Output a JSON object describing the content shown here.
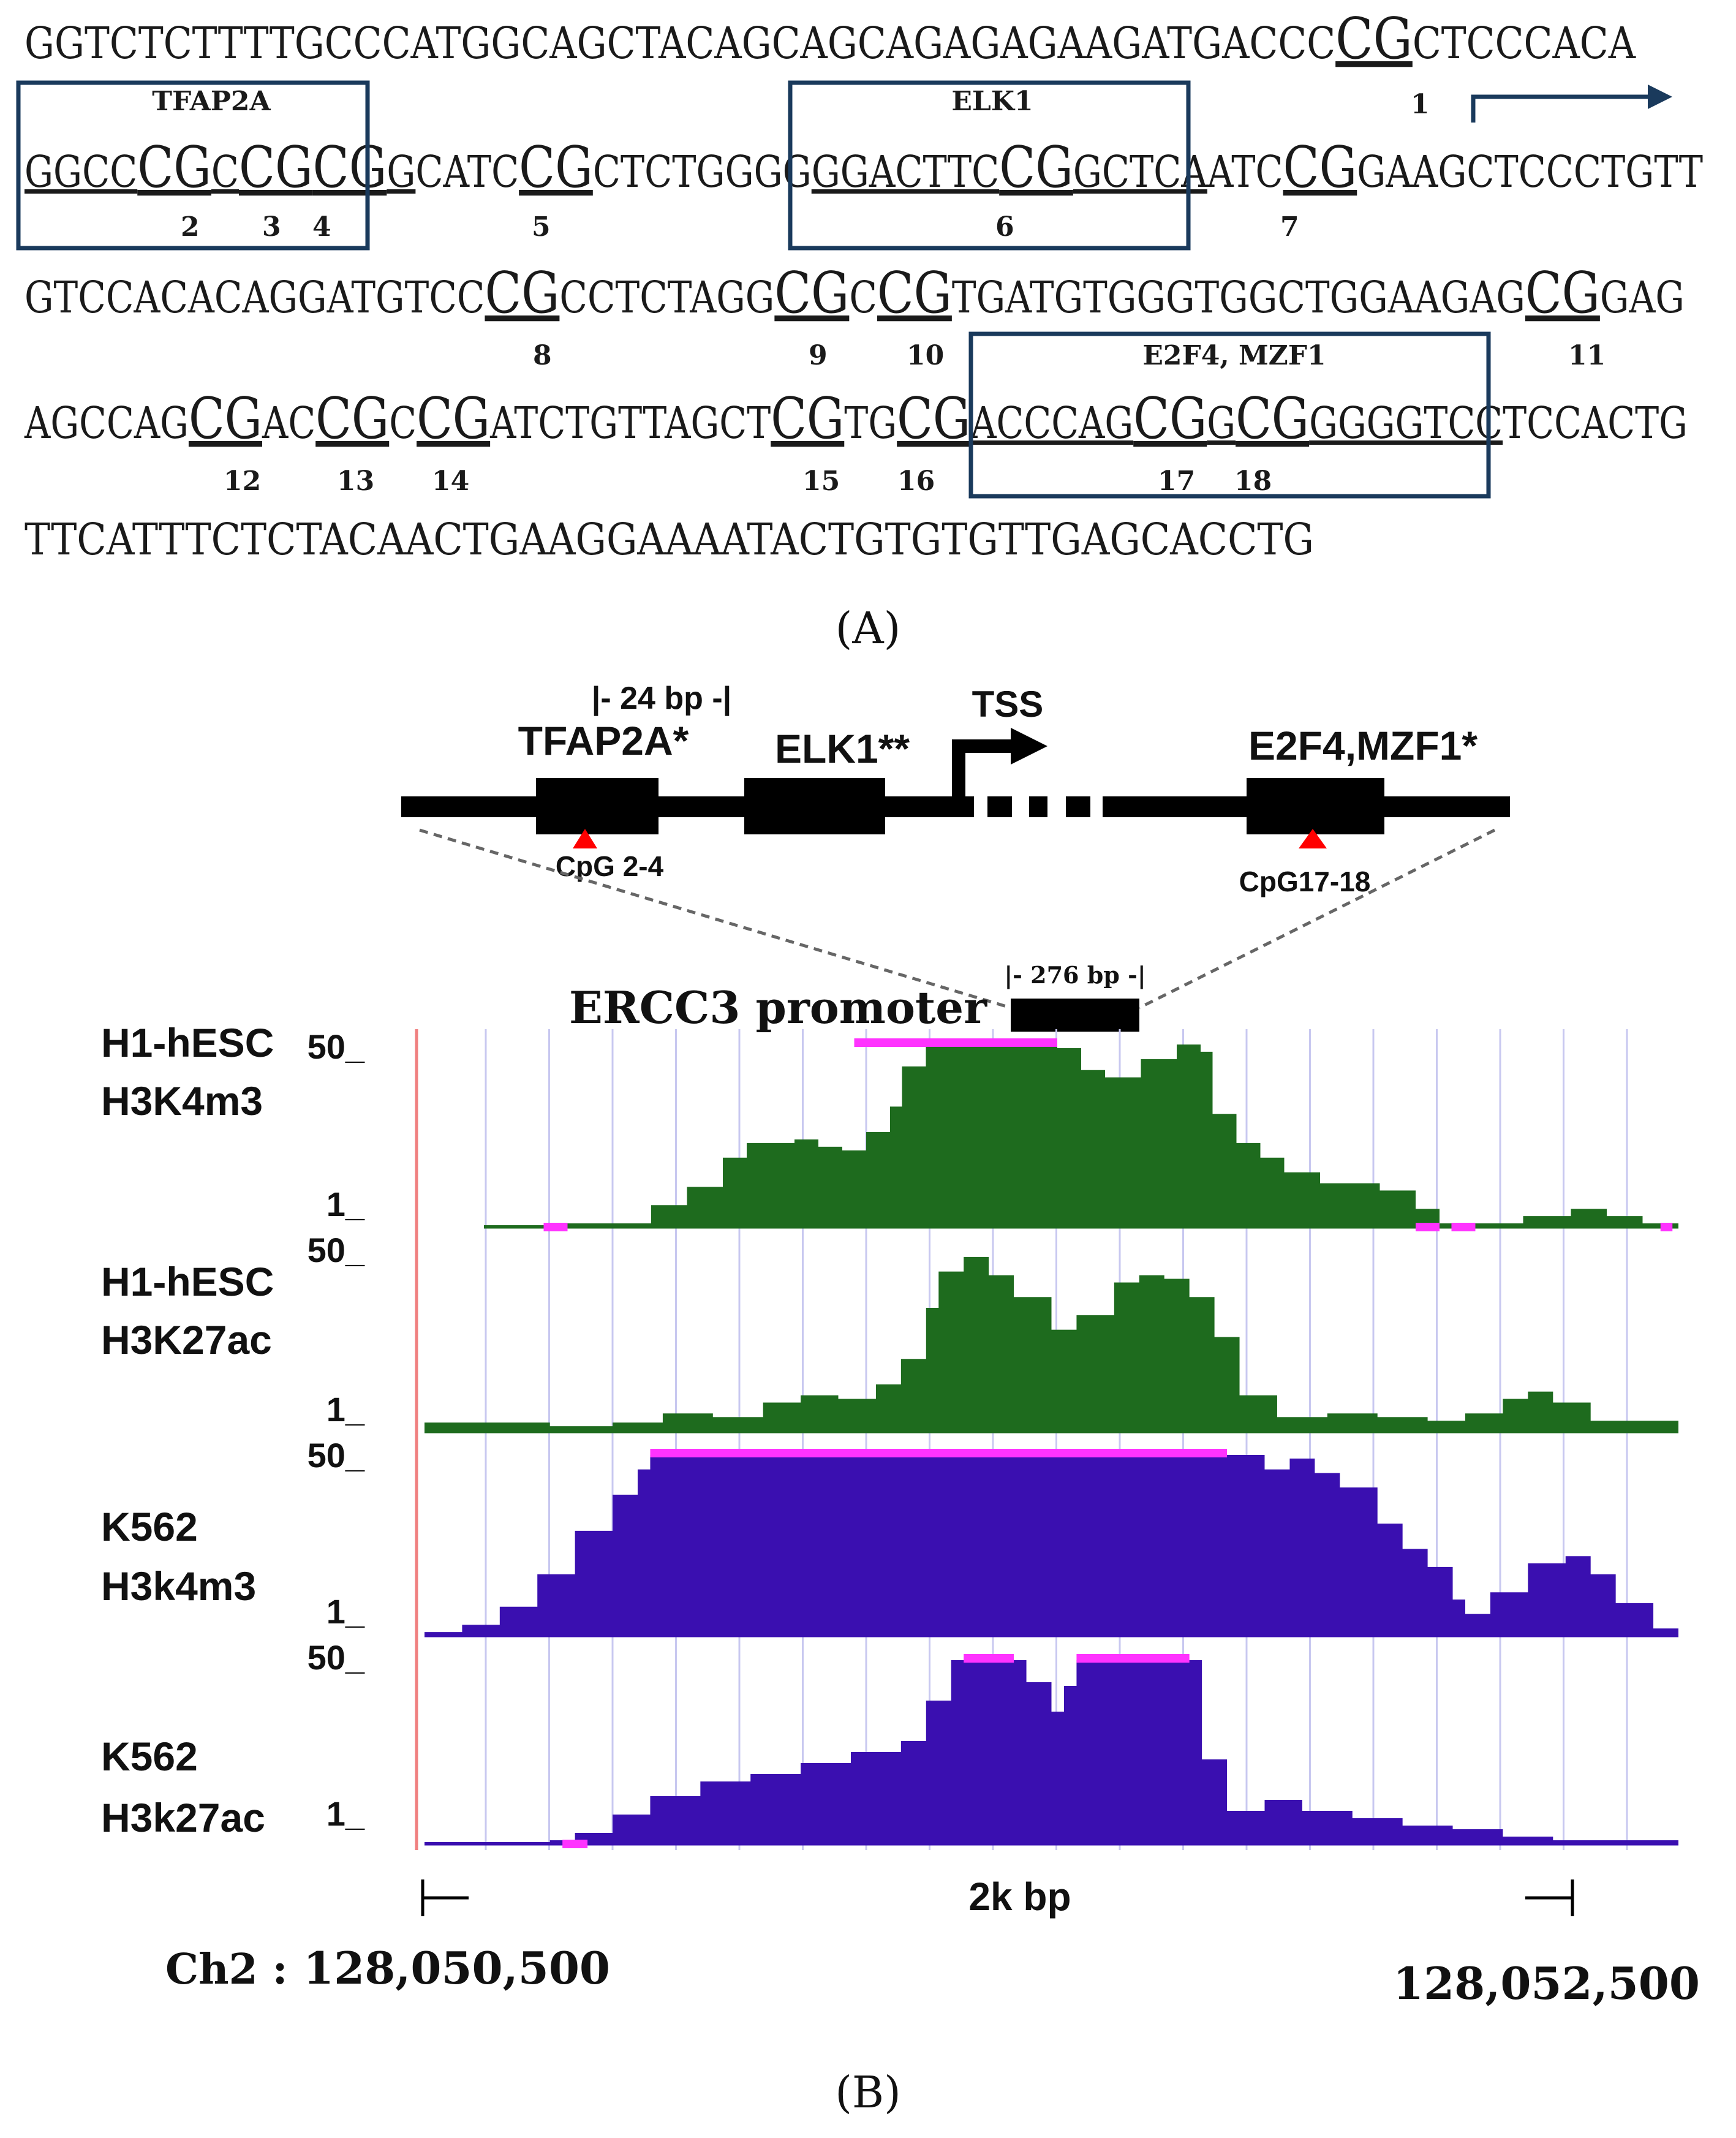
{
  "panel_a": {
    "lines": [
      [
        {
          "t": "GGTCTCTTTTGCCCATGGCAGCTACAGCAGCAGAGAGAAGATGACCC"
        },
        {
          "t": "CG",
          "cg": true,
          "u": true
        },
        {
          "t": "CTCCCACA"
        }
      ],
      [
        {
          "t": "GGCC",
          "u": true
        },
        {
          "t": "CG",
          "cg": true,
          "u": true
        },
        {
          "t": "C",
          "u": true
        },
        {
          "t": "CG",
          "cg": true,
          "u": true
        },
        {
          "t": "CG",
          "cg": true,
          "u": true
        },
        {
          "t": "G",
          "u": true
        },
        {
          "t": "CATC"
        },
        {
          "t": "CG",
          "cg": true,
          "u": true
        },
        {
          "t": "CTCTGGGG"
        },
        {
          "t": "GGACTTC",
          "u": true
        },
        {
          "t": "CG",
          "cg": true,
          "u": true
        },
        {
          "t": "GCTCA",
          "u": true
        },
        {
          "t": "ATC"
        },
        {
          "t": "CG",
          "cg": true,
          "u": true
        },
        {
          "t": "GAAGCTCCCTGTT"
        }
      ],
      [
        {
          "t": "GTCCACACAGGATGTCC"
        },
        {
          "t": "CG",
          "cg": true,
          "u": true
        },
        {
          "t": "CCTCTAGG"
        },
        {
          "t": "CG",
          "cg": true,
          "u": true
        },
        {
          "t": "C"
        },
        {
          "t": "CG",
          "cg": true,
          "u": true
        },
        {
          "t": "TGATGTGGGTGGCTGGAAGAG"
        },
        {
          "t": "CG",
          "cg": true,
          "u": true
        },
        {
          "t": "GAG"
        }
      ],
      [
        {
          "t": "AGCCAG"
        },
        {
          "t": "CG",
          "cg": true,
          "u": true
        },
        {
          "t": "AC"
        },
        {
          "t": "CG",
          "cg": true,
          "u": true
        },
        {
          "t": "C"
        },
        {
          "t": "CG",
          "cg": true,
          "u": true
        },
        {
          "t": "ATCTGTTAGCT"
        },
        {
          "t": "CG",
          "cg": true,
          "u": true
        },
        {
          "t": "TG"
        },
        {
          "t": "CG",
          "cg": true,
          "u": true
        },
        {
          "t": "ACCCAG",
          "u": true
        },
        {
          "t": "CG",
          "cg": true,
          "u": true
        },
        {
          "t": "G",
          "u": true
        },
        {
          "t": "CG",
          "cg": true,
          "u": true
        },
        {
          "t": "GGGGTCC",
          "u": true
        },
        {
          "t": "TCCACTG"
        }
      ],
      [
        {
          "t": "TTCATTTCTCTACAACTGAAGGAAAATACTGTGTGTTGAGCACCTG"
        }
      ]
    ],
    "cpg_numbers": [
      "1",
      "2",
      "3",
      "4",
      "5",
      "6",
      "7",
      "8",
      "9",
      "10",
      "11",
      "12",
      "13",
      "14",
      "15",
      "16",
      "17",
      "18"
    ],
    "tf_boxes": [
      "TFAP2A",
      "ELK1",
      "E2F4, MZF1"
    ],
    "label": "(A)"
  },
  "panel_b": {
    "schematic": {
      "bp_label": "|- 24  bp -|",
      "tss_label": "TSS",
      "tf_labels": [
        "TFAP2A*",
        "ELK1**",
        "E2F4,MZF1*"
      ],
      "cpg_labels": [
        "CpG 2-4",
        "CpG17-18"
      ],
      "promoter_label": "ERCC3 promoter",
      "promoter_bp": "|- 276 bp -|"
    },
    "tracks": [
      {
        "line1": "H1-hESC",
        "line2": "H3K4m3",
        "max": "50_",
        "min": "1_",
        "color": "#1e6b1e",
        "profile": [
          [
            0.0,
            0.01
          ],
          [
            0.05,
            0.02
          ],
          [
            0.1,
            0.02
          ],
          [
            0.14,
            0.12
          ],
          [
            0.17,
            0.22
          ],
          [
            0.2,
            0.38
          ],
          [
            0.22,
            0.46
          ],
          [
            0.26,
            0.48
          ],
          [
            0.28,
            0.44
          ],
          [
            0.3,
            0.42
          ],
          [
            0.32,
            0.52
          ],
          [
            0.34,
            0.66
          ],
          [
            0.35,
            0.88
          ],
          [
            0.37,
            1.0
          ],
          [
            0.45,
            1.0
          ],
          [
            0.48,
            0.98
          ],
          [
            0.5,
            0.86
          ],
          [
            0.52,
            0.82
          ],
          [
            0.55,
            0.92
          ],
          [
            0.58,
            1.0
          ],
          [
            0.6,
            0.96
          ],
          [
            0.61,
            0.62
          ],
          [
            0.63,
            0.46
          ],
          [
            0.65,
            0.38
          ],
          [
            0.67,
            0.3
          ],
          [
            0.7,
            0.24
          ],
          [
            0.75,
            0.2
          ],
          [
            0.78,
            0.1
          ],
          [
            0.8,
            0.02
          ],
          [
            0.84,
            0.02
          ],
          [
            0.87,
            0.06
          ],
          [
            0.91,
            0.1
          ],
          [
            0.94,
            0.06
          ],
          [
            0.97,
            0.02
          ],
          [
            1.0,
            0.02
          ]
        ],
        "sat": [
          [
            0.05,
            0.07
          ],
          [
            0.31,
            0.48
          ],
          [
            0.78,
            0.8
          ],
          [
            0.81,
            0.83
          ],
          [
            0.985,
            0.995
          ]
        ]
      },
      {
        "line1": "H1-hESC",
        "line2": "H3K27ac",
        "max": "50_",
        "min": "1_",
        "color": "#1e6b1e",
        "profile": [
          [
            0.0,
            0.05
          ],
          [
            0.06,
            0.05
          ],
          [
            0.1,
            0.03
          ],
          [
            0.15,
            0.05
          ],
          [
            0.19,
            0.1
          ],
          [
            0.23,
            0.08
          ],
          [
            0.27,
            0.16
          ],
          [
            0.3,
            0.2
          ],
          [
            0.33,
            0.18
          ],
          [
            0.36,
            0.26
          ],
          [
            0.38,
            0.4
          ],
          [
            0.4,
            0.68
          ],
          [
            0.41,
            0.88
          ],
          [
            0.43,
            0.96
          ],
          [
            0.45,
            0.86
          ],
          [
            0.47,
            0.74
          ],
          [
            0.5,
            0.56
          ],
          [
            0.52,
            0.64
          ],
          [
            0.55,
            0.82
          ],
          [
            0.57,
            0.86
          ],
          [
            0.59,
            0.84
          ],
          [
            0.61,
            0.74
          ],
          [
            0.63,
            0.52
          ],
          [
            0.65,
            0.2
          ],
          [
            0.68,
            0.08
          ],
          [
            0.72,
            0.1
          ],
          [
            0.76,
            0.08
          ],
          [
            0.8,
            0.06
          ],
          [
            0.83,
            0.1
          ],
          [
            0.86,
            0.18
          ],
          [
            0.88,
            0.22
          ],
          [
            0.9,
            0.16
          ],
          [
            0.93,
            0.06
          ],
          [
            0.96,
            0.06
          ],
          [
            1.0,
            0.05
          ]
        ],
        "sat": []
      },
      {
        "line1": "K562",
        "line2": "H3k4m3",
        "max": "50_",
        "min": "1_",
        "color": "#3a0fb0",
        "profile": [
          [
            0.0,
            0.02
          ],
          [
            0.03,
            0.06
          ],
          [
            0.06,
            0.16
          ],
          [
            0.09,
            0.34
          ],
          [
            0.12,
            0.58
          ],
          [
            0.15,
            0.78
          ],
          [
            0.17,
            0.92
          ],
          [
            0.18,
            1.0
          ],
          [
            0.64,
            1.0
          ],
          [
            0.67,
            0.92
          ],
          [
            0.69,
            0.98
          ],
          [
            0.71,
            0.9
          ],
          [
            0.73,
            0.82
          ],
          [
            0.76,
            0.62
          ],
          [
            0.78,
            0.48
          ],
          [
            0.8,
            0.38
          ],
          [
            0.82,
            0.2
          ],
          [
            0.83,
            0.12
          ],
          [
            0.85,
            0.24
          ],
          [
            0.88,
            0.4
          ],
          [
            0.91,
            0.44
          ],
          [
            0.93,
            0.34
          ],
          [
            0.95,
            0.18
          ],
          [
            0.98,
            0.04
          ],
          [
            1.0,
            0.02
          ]
        ],
        "sat": [
          [
            0.18,
            0.64
          ]
        ]
      },
      {
        "line1": "K562",
        "line2": "H3k27ac",
        "max": "50_",
        "min": "1_",
        "color": "#3a0fb0",
        "profile": [
          [
            0.0,
            0.01
          ],
          [
            0.06,
            0.01
          ],
          [
            0.1,
            0.02
          ],
          [
            0.12,
            0.06
          ],
          [
            0.15,
            0.16
          ],
          [
            0.18,
            0.26
          ],
          [
            0.22,
            0.34
          ],
          [
            0.26,
            0.38
          ],
          [
            0.3,
            0.44
          ],
          [
            0.34,
            0.5
          ],
          [
            0.38,
            0.56
          ],
          [
            0.4,
            0.78
          ],
          [
            0.42,
            1.0
          ],
          [
            0.46,
            1.0
          ],
          [
            0.48,
            0.88
          ],
          [
            0.5,
            0.72
          ],
          [
            0.51,
            0.86
          ],
          [
            0.52,
            1.0
          ],
          [
            0.61,
            1.0
          ],
          [
            0.62,
            0.46
          ],
          [
            0.64,
            0.18
          ],
          [
            0.67,
            0.24
          ],
          [
            0.7,
            0.18
          ],
          [
            0.74,
            0.14
          ],
          [
            0.78,
            0.1
          ],
          [
            0.82,
            0.08
          ],
          [
            0.86,
            0.04
          ],
          [
            0.9,
            0.02
          ],
          [
            1.0,
            0.02
          ]
        ],
        "sat": [
          [
            0.11,
            0.13
          ],
          [
            0.43,
            0.47
          ],
          [
            0.52,
            0.61
          ]
        ]
      }
    ],
    "axis": {
      "scale_label": "2k  bp",
      "chrom": "Ch2 :",
      "start": "128,050,500",
      "end": "128,052,500"
    },
    "label": "(B)",
    "colors": {
      "h1_fill": "#1e6b1e",
      "k562_fill": "#3a0fb0",
      "saturation": "#ff33ff",
      "grid": "#c8c8f0",
      "schematic": "#000000",
      "cpg_marker": "#ff0000",
      "tf_box_border": "#1a3a5c",
      "arrow": "#1a3a5c"
    }
  }
}
